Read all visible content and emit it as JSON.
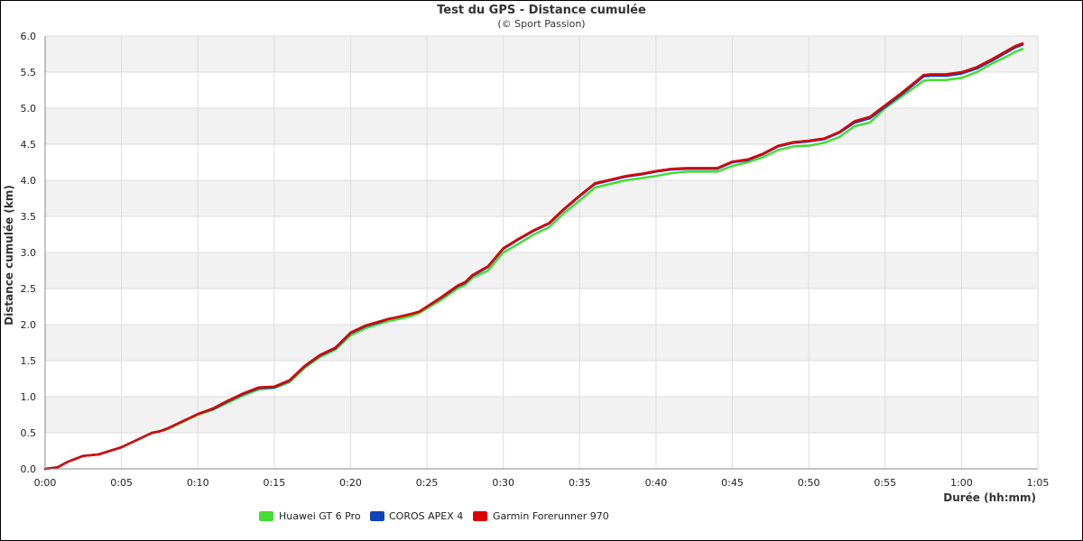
{
  "chart_data": {
    "type": "line",
    "title": "Test du GPS - Distance cumulée",
    "subtitle": "(© Sport Passion)",
    "xlabel": "Durée (hh:mm)",
    "ylabel": "Distance cumulée (km)",
    "xlim": [
      0,
      65
    ],
    "ylim": [
      0,
      6
    ],
    "x_ticks": [
      "0:00",
      "0:05",
      "0:10",
      "0:15",
      "0:20",
      "0:25",
      "0:30",
      "0:35",
      "0:40",
      "0:45",
      "0:50",
      "0:55",
      "1:00",
      "1:05"
    ],
    "y_ticks": [
      "0.0",
      "0.5",
      "1.0",
      "1.5",
      "2.0",
      "2.5",
      "3.0",
      "3.5",
      "4.0",
      "4.5",
      "5.0",
      "5.5",
      "6.0"
    ],
    "grid": true,
    "legend_position": "bottom",
    "x": [
      0,
      0.8,
      1.5,
      2.5,
      3.5,
      5,
      7,
      7.5,
      8,
      10,
      11,
      12,
      13,
      14,
      15,
      16,
      17,
      18,
      19,
      20,
      21,
      22,
      22.5,
      23,
      24,
      24.5,
      26,
      27,
      27.5,
      28,
      29,
      30,
      31,
      32,
      33,
      34,
      35,
      36,
      37,
      38,
      39,
      40,
      41,
      42,
      43,
      44,
      45,
      46,
      47,
      48,
      49,
      50,
      51,
      52,
      53,
      54,
      55,
      56,
      57,
      57.5,
      58,
      59,
      60,
      61,
      62,
      63,
      63.5,
      64
    ],
    "series": [
      {
        "name": "Huawei GT 6 Pro",
        "color": "#44dd33",
        "values": [
          0,
          0.02,
          0.1,
          0.18,
          0.2,
          0.3,
          0.5,
          0.52,
          0.55,
          0.75,
          0.82,
          0.92,
          1.02,
          1.1,
          1.12,
          1.2,
          1.4,
          1.55,
          1.65,
          1.85,
          1.95,
          2.02,
          2.05,
          2.07,
          2.12,
          2.16,
          2.35,
          2.5,
          2.55,
          2.65,
          2.75,
          3.0,
          3.12,
          3.25,
          3.35,
          3.55,
          3.72,
          3.9,
          3.95,
          4.0,
          4.03,
          4.06,
          4.1,
          4.12,
          4.12,
          4.12,
          4.2,
          4.25,
          4.32,
          4.42,
          4.47,
          4.48,
          4.52,
          4.6,
          4.75,
          4.8,
          5.0,
          5.15,
          5.3,
          5.38,
          5.39,
          5.39,
          5.42,
          5.5,
          5.62,
          5.72,
          5.78,
          5.82
        ]
      },
      {
        "name": "COROS APEX 4",
        "color": "#1144bb",
        "values": [
          0,
          0.02,
          0.1,
          0.18,
          0.2,
          0.3,
          0.5,
          0.52,
          0.56,
          0.76,
          0.83,
          0.94,
          1.04,
          1.12,
          1.13,
          1.22,
          1.42,
          1.57,
          1.67,
          1.88,
          1.98,
          2.04,
          2.08,
          2.1,
          2.15,
          2.18,
          2.38,
          2.53,
          2.58,
          2.68,
          2.8,
          3.05,
          3.18,
          3.3,
          3.4,
          3.6,
          3.78,
          3.95,
          4.0,
          4.05,
          4.08,
          4.12,
          4.15,
          4.16,
          4.16,
          4.16,
          4.25,
          4.28,
          4.36,
          4.47,
          4.52,
          4.54,
          4.57,
          4.66,
          4.8,
          4.86,
          5.02,
          5.18,
          5.35,
          5.44,
          5.45,
          5.45,
          5.48,
          5.55,
          5.66,
          5.78,
          5.84,
          5.88
        ]
      },
      {
        "name": "Garmin Forerunner 970",
        "color": "#dd0000",
        "values": [
          0,
          0.02,
          0.1,
          0.18,
          0.2,
          0.3,
          0.5,
          0.52,
          0.56,
          0.76,
          0.84,
          0.95,
          1.05,
          1.13,
          1.14,
          1.23,
          1.43,
          1.58,
          1.68,
          1.89,
          1.99,
          2.05,
          2.08,
          2.1,
          2.15,
          2.18,
          2.39,
          2.54,
          2.59,
          2.69,
          2.81,
          3.06,
          3.19,
          3.31,
          3.41,
          3.61,
          3.79,
          3.96,
          4.01,
          4.06,
          4.09,
          4.13,
          4.16,
          4.17,
          4.17,
          4.17,
          4.26,
          4.29,
          4.37,
          4.48,
          4.53,
          4.55,
          4.58,
          4.67,
          4.82,
          4.88,
          5.04,
          5.2,
          5.37,
          5.46,
          5.47,
          5.47,
          5.5,
          5.57,
          5.68,
          5.8,
          5.86,
          5.9
        ]
      }
    ]
  }
}
